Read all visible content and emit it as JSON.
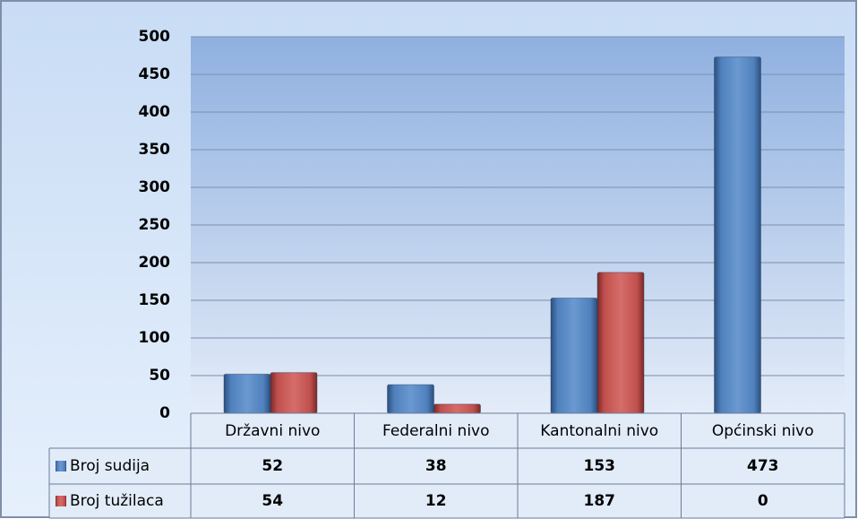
{
  "chart_data": {
    "type": "bar",
    "categories": [
      "Državni nivo",
      "Federalni nivo",
      "Kantonalni nivo",
      "Općinski nivo"
    ],
    "series": [
      {
        "name": "Broj sudija",
        "color": "#4f81bd",
        "values": [
          52,
          38,
          153,
          473
        ]
      },
      {
        "name": "Broj tužilaca",
        "color": "#c0504d",
        "values": [
          54,
          12,
          187,
          0
        ]
      }
    ],
    "ylim": [
      0,
      500
    ],
    "yticks": [
      0,
      50,
      100,
      150,
      200,
      250,
      300,
      350,
      400,
      450,
      500
    ],
    "grid": true,
    "data_table": true
  }
}
